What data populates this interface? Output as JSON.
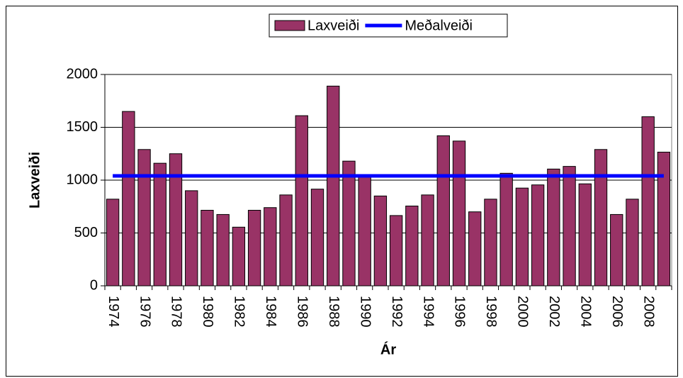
{
  "chart_data": {
    "type": "bar",
    "categories": [
      "1974",
      null,
      "1976",
      null,
      "1978",
      null,
      "1980",
      null,
      "1982",
      null,
      "1984",
      null,
      "1986",
      null,
      "1988",
      null,
      "1990",
      null,
      "1992",
      null,
      "1994",
      null,
      "1996",
      null,
      "1998",
      null,
      "2000",
      null,
      "2002",
      null,
      "2004",
      null,
      "2006",
      null,
      "2008",
      null
    ],
    "series": [
      {
        "name": "Laxveiði",
        "color": "#993366",
        "type": "bar",
        "values": [
          820,
          1650,
          1290,
          1160,
          1250,
          900,
          715,
          675,
          555,
          715,
          740,
          860,
          1610,
          915,
          1890,
          1180,
          1045,
          850,
          665,
          755,
          860,
          1420,
          1370,
          700,
          820,
          1065,
          925,
          955,
          1105,
          1130,
          965,
          1290,
          675,
          820,
          1600,
          1265
        ]
      },
      {
        "name": "Meðalveiði",
        "color": "#0000ff",
        "type": "line",
        "values": [
          1040,
          1040,
          1040,
          1040,
          1040,
          1040,
          1040,
          1040,
          1040,
          1040,
          1040,
          1040,
          1040,
          1040,
          1040,
          1040,
          1040,
          1040,
          1040,
          1040,
          1040,
          1040,
          1040,
          1040,
          1040,
          1040,
          1040,
          1040,
          1040,
          1040,
          1040,
          1040,
          1040,
          1040,
          1040,
          1040
        ]
      }
    ],
    "xlabel": "Ár",
    "ylabel": "Laxveiði",
    "ylim": [
      0,
      2000
    ],
    "yticks": [
      0,
      500,
      1000,
      1500,
      2000
    ],
    "grid": true,
    "legend": "top"
  }
}
